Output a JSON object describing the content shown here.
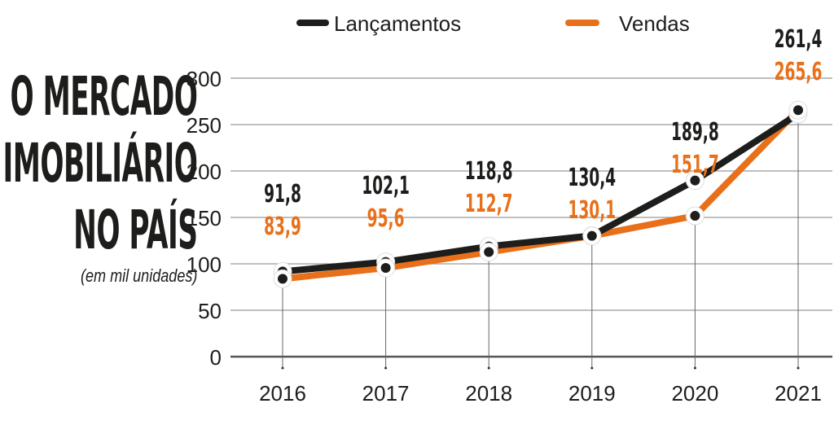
{
  "chart_data": {
    "type": "line",
    "title": [
      "O MERCADO",
      "IMOBILIÁRIO",
      "NO PAÍS"
    ],
    "subtitle": "(em mil unidades)",
    "xlabel": "",
    "ylabel": "",
    "categories": [
      "2016",
      "2017",
      "2018",
      "2019",
      "2020",
      "2021"
    ],
    "ylim": [
      0,
      300
    ],
    "yticks": [
      "0",
      "50",
      "100",
      "150",
      "200",
      "250",
      "300"
    ],
    "grid": true,
    "legend_position": "top",
    "series": [
      {
        "name": "Lançamentos",
        "color": "#1d1d1b",
        "values": [
          91.8,
          102.1,
          118.8,
          130.4,
          189.8,
          261.4
        ],
        "labels": [
          "91,8",
          "102,1",
          "118,8",
          "130,4",
          "189,8",
          "261,4"
        ]
      },
      {
        "name": "Vendas",
        "color": "#e8701a",
        "values": [
          83.9,
          95.6,
          112.7,
          130.1,
          151.7,
          265.6
        ],
        "labels": [
          "83,9",
          "95,6",
          "112,7",
          "130,1",
          "151,7",
          "265,6"
        ]
      }
    ]
  }
}
